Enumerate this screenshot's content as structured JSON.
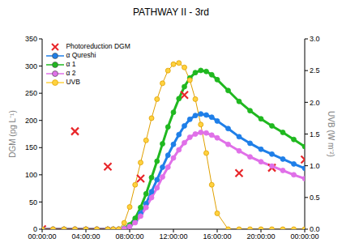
{
  "chart_data": {
    "type": "line",
    "title": "PATHWAY II - 3rd",
    "x_label": null,
    "y_label": "DGM (pg L⁻¹)",
    "y2_label": "UVB (W m⁻²)",
    "xlim": [
      0,
      24
    ],
    "xticks": [
      {
        "value": 0,
        "label": "00:00:00"
      },
      {
        "value": 4,
        "label": "04:00:00"
      },
      {
        "value": 8,
        "label": "08:00:00"
      },
      {
        "value": 12,
        "label": "12:00:00"
      },
      {
        "value": 16,
        "label": "16:00:00"
      },
      {
        "value": 20,
        "label": "20:00:00"
      },
      {
        "value": 24,
        "label": "00:00:00"
      }
    ],
    "ylim": [
      0,
      350
    ],
    "yticks": [
      0,
      50,
      100,
      150,
      200,
      250,
      300,
      350
    ],
    "y2lim": [
      0,
      3
    ],
    "y2ticks": [
      {
        "value": 0,
        "label": "0.0"
      },
      {
        "value": 0.5,
        "label": "0.5"
      },
      {
        "value": 1,
        "label": "1.0"
      },
      {
        "value": 1.5,
        "label": "1.5"
      },
      {
        "value": 2,
        "label": "2.0"
      },
      {
        "value": 2.5,
        "label": "2.5"
      },
      {
        "value": 3,
        "label": "3.0"
      }
    ],
    "legend": "upper left",
    "grid": false,
    "x": [
      0,
      1,
      2,
      3,
      4,
      5,
      6,
      6.5,
      7,
      7.5,
      8,
      8.5,
      9,
      9.5,
      10,
      10.5,
      11,
      11.5,
      12,
      12.5,
      13,
      13.5,
      14,
      14.5,
      15,
      15.5,
      16,
      17,
      18,
      19,
      20,
      21,
      22,
      23,
      24
    ],
    "series": [
      {
        "name": "Photoreduction DGM",
        "type": "scatter",
        "color": "#e8262a",
        "marker": "x",
        "x": [
          0,
          3,
          6,
          9,
          13,
          18,
          21,
          24
        ],
        "values": [
          0,
          180,
          115,
          93,
          247,
          103,
          113,
          128
        ]
      },
      {
        "name": "α Qureshi",
        "type": "line",
        "color": "#1f7fe8",
        "marker": "circle",
        "values": [
          0,
          0,
          0,
          0,
          0,
          0,
          0,
          0,
          0,
          1,
          6,
          14,
          29,
          47,
          69,
          91,
          114,
          136,
          156,
          174,
          190,
          202,
          209,
          212,
          210,
          206,
          199,
          185,
          170,
          158,
          147,
          138,
          129,
          120,
          112
        ]
      },
      {
        "name": "α 1",
        "type": "line",
        "color": "#20b820",
        "marker": "circle",
        "values": [
          0,
          0,
          0,
          0,
          0,
          0,
          0,
          0,
          0,
          2,
          8,
          20,
          40,
          65,
          95,
          125,
          157,
          188,
          215,
          240,
          262,
          278,
          288,
          292,
          290,
          284,
          275,
          255,
          235,
          218,
          203,
          190,
          178,
          165,
          152
        ]
      },
      {
        "name": "α 2",
        "type": "line",
        "color": "#e070e8",
        "marker": "circle",
        "values": [
          0,
          0,
          0,
          0,
          0,
          0,
          0,
          0,
          0,
          1,
          5,
          12,
          24,
          40,
          58,
          76,
          96,
          114,
          131,
          146,
          159,
          169,
          175,
          178,
          177,
          173,
          168,
          156,
          144,
          133,
          124,
          116,
          108,
          100,
          93
        ]
      },
      {
        "name": "UVB",
        "type": "line",
        "color": "#ffd23f",
        "marker": "circle",
        "axis": "y2",
        "values": [
          0,
          0,
          0,
          0,
          0,
          0,
          0,
          0,
          0,
          0.1,
          0.35,
          0.7,
          1.05,
          1.4,
          1.75,
          2.05,
          2.3,
          2.5,
          2.6,
          2.62,
          2.55,
          2.35,
          2.05,
          1.65,
          1.2,
          0.7,
          0.25,
          0,
          0,
          0,
          0,
          0,
          0,
          0,
          0
        ]
      }
    ]
  }
}
